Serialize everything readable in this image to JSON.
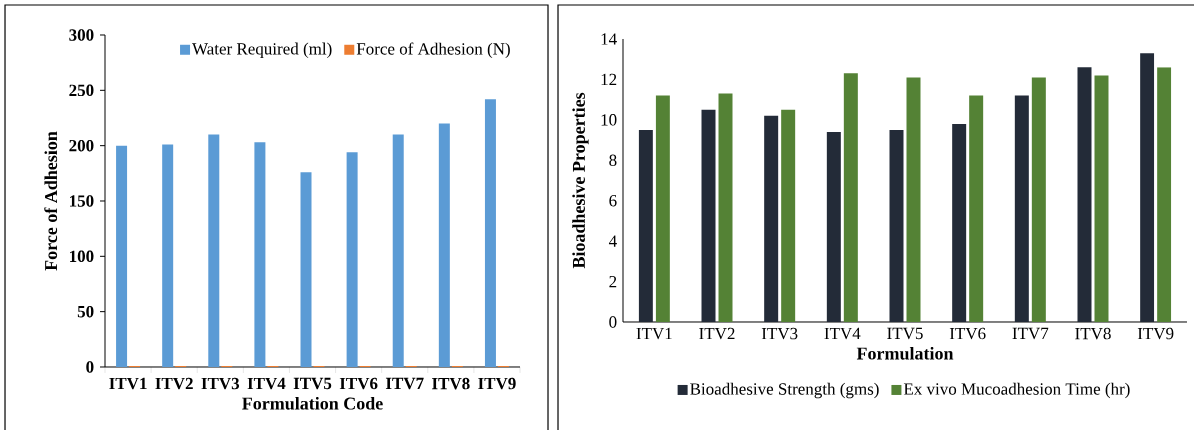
{
  "chart_data": [
    {
      "type": "bar",
      "xlabel": "Formulation Code",
      "ylabel": "Force of Adhesion",
      "categories": [
        "ITV1",
        "ITV2",
        "ITV3",
        "ITV4",
        "ITV5",
        "ITV6",
        "ITV7",
        "ITV8",
        "ITV9"
      ],
      "series": [
        {
          "name": "Water Required (ml)",
          "color": "#5b9bd5",
          "values": [
            200,
            201,
            210,
            203,
            176,
            194,
            210,
            220,
            242
          ]
        },
        {
          "name": "Force of Adhesion (N)",
          "color": "#ed7d31",
          "values": [
            1,
            1,
            1,
            1,
            1,
            1,
            1,
            1,
            1
          ]
        }
      ],
      "ylim": [
        0,
        300
      ],
      "yticks": [
        0,
        50,
        100,
        150,
        200,
        250,
        300
      ],
      "legend": "top right"
    },
    {
      "type": "bar",
      "xlabel": "Formulation",
      "ylabel": "Bioadhesive Properties",
      "categories": [
        "ITV1",
        "ITV2",
        "ITV3",
        "ITV4",
        "ITV5",
        "ITV6",
        "ITV7",
        "ITV8",
        "ITV9"
      ],
      "series": [
        {
          "name": "Bioadhesive Strength (gms)",
          "color": "#232b38",
          "values": [
            9.5,
            10.5,
            10.2,
            9.4,
            9.5,
            9.8,
            11.2,
            12.6,
            13.3
          ]
        },
        {
          "name": "Ex vivo Mucoadhesion Time (hr)",
          "color": "#548235",
          "values": [
            11.2,
            11.3,
            10.5,
            12.3,
            12.1,
            11.2,
            12.1,
            12.2,
            12.6
          ]
        }
      ],
      "ylim": [
        0,
        14
      ],
      "yticks": [
        0,
        2,
        4,
        6,
        8,
        10,
        12,
        14
      ],
      "legend": "bottom"
    }
  ]
}
